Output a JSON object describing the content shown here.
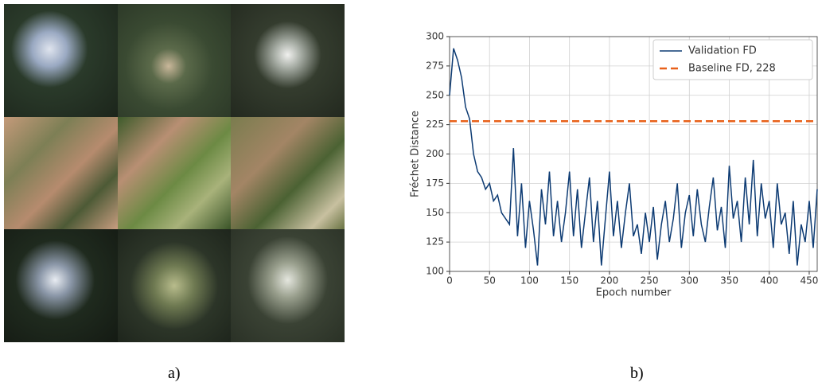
{
  "figure": {
    "caption_a": "a)",
    "caption_b": "b)"
  },
  "chart_data": {
    "type": "line",
    "xlabel": "Epoch number",
    "ylabel": "Fréchet Distance",
    "x": [
      0,
      5,
      10,
      15,
      20,
      25,
      30,
      35,
      40,
      45,
      50,
      55,
      60,
      65,
      70,
      75,
      80,
      85,
      90,
      95,
      100,
      105,
      110,
      115,
      120,
      125,
      130,
      135,
      140,
      145,
      150,
      155,
      160,
      165,
      170,
      175,
      180,
      185,
      190,
      195,
      200,
      205,
      210,
      215,
      220,
      225,
      230,
      235,
      240,
      245,
      250,
      255,
      260,
      265,
      270,
      275,
      280,
      285,
      290,
      295,
      300,
      305,
      310,
      315,
      320,
      325,
      330,
      335,
      340,
      345,
      350,
      355,
      360,
      365,
      370,
      375,
      380,
      385,
      390,
      395,
      400,
      405,
      410,
      415,
      420,
      425,
      430,
      435,
      440,
      445,
      450,
      455,
      460
    ],
    "series": [
      {
        "name": "Validation FD",
        "color": "#0d3b73",
        "values": [
          250,
          290,
          280,
          265,
          240,
          230,
          200,
          185,
          180,
          170,
          175,
          160,
          165,
          150,
          145,
          140,
          205,
          130,
          175,
          120,
          160,
          135,
          105,
          170,
          140,
          185,
          130,
          160,
          125,
          150,
          185,
          130,
          170,
          120,
          150,
          180,
          125,
          160,
          105,
          145,
          185,
          130,
          160,
          120,
          150,
          175,
          130,
          140,
          115,
          150,
          125,
          155,
          110,
          140,
          160,
          125,
          145,
          175,
          120,
          150,
          165,
          130,
          170,
          140,
          125,
          155,
          180,
          135,
          155,
          120,
          190,
          145,
          160,
          125,
          180,
          140,
          195,
          130,
          175,
          145,
          160,
          120,
          175,
          140,
          150,
          115,
          160,
          105,
          140,
          125,
          160,
          120,
          170
        ]
      }
    ],
    "baseline": {
      "name": "Baseline FD, 228",
      "value": 228,
      "color": "#e8611a"
    },
    "xlim": [
      0,
      460
    ],
    "ylim": [
      100,
      300
    ],
    "xticks": [
      0,
      50,
      100,
      150,
      200,
      250,
      300,
      350,
      400,
      450
    ],
    "yticks": [
      100,
      125,
      150,
      175,
      200,
      225,
      250,
      275,
      300
    ],
    "grid": true,
    "legend": "upper right"
  }
}
